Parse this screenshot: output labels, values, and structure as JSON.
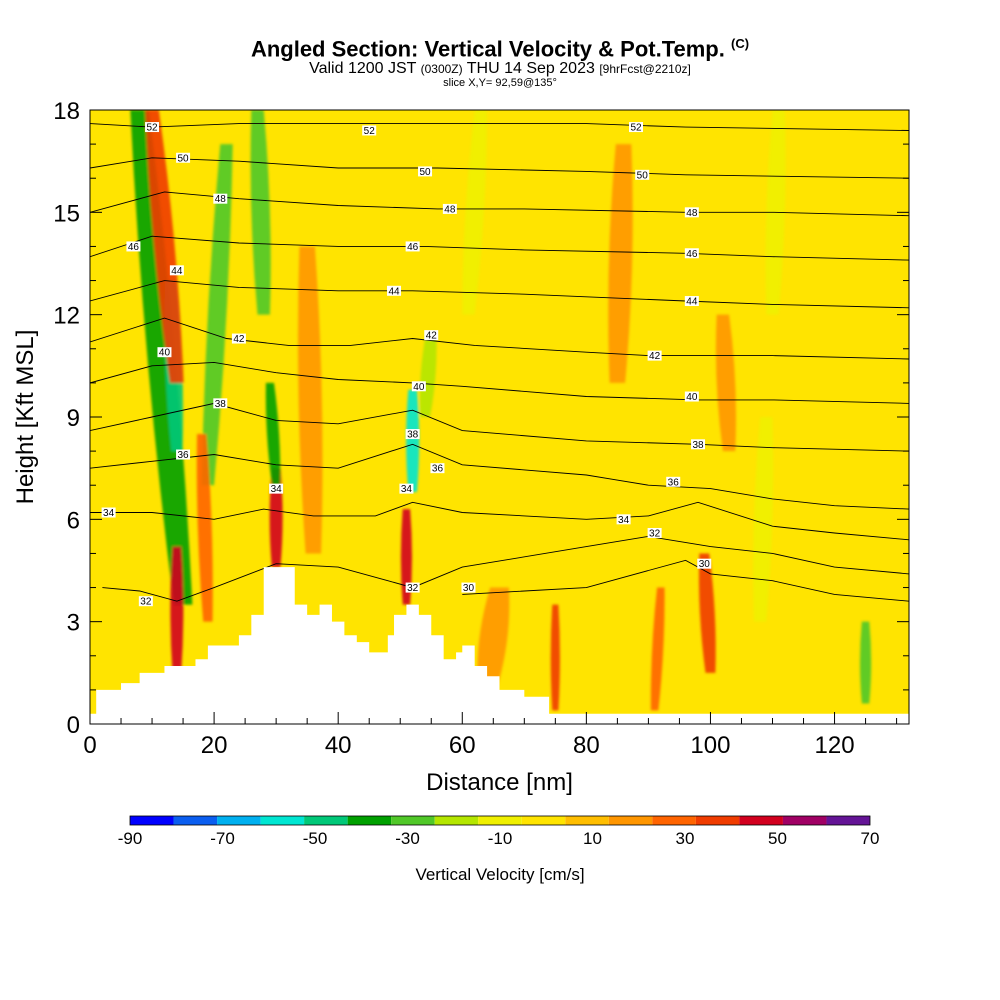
{
  "header": {
    "title": "Angled Section: Vertical Velocity & Pot.Temp.",
    "copyright": "(C)",
    "valid_prefix": "Valid 1200 JST",
    "valid_z": "(0300Z)",
    "valid_date": "THU 14 Sep 2023",
    "forecast": "[9hrFcst@2210z]",
    "slice": "slice X,Y= 92,59@135°"
  },
  "chart_data": {
    "type": "heatmap",
    "xlabel": "Distance [nm]",
    "ylabel": "Height [Kft MSL]",
    "xlim": [
      0,
      132
    ],
    "ylim": [
      0,
      18
    ],
    "x_ticks": [
      "0",
      "20",
      "40",
      "60",
      "80",
      "100",
      "120"
    ],
    "y_ticks": [
      "0",
      "3",
      "6",
      "9",
      "12",
      "15",
      "18"
    ],
    "colorbar": {
      "label": "Vertical Velocity [cm/s]",
      "tick_labels": [
        "-90",
        "-70",
        "-50",
        "-30",
        "-10",
        "10",
        "30",
        "50",
        "70"
      ],
      "boundaries": [
        -90,
        -80,
        -70,
        -60,
        -50,
        -40,
        -30,
        -20,
        -10,
        0,
        10,
        20,
        30,
        40,
        50,
        60,
        70
      ],
      "colors": [
        "#0000ff",
        "#0a5ef0",
        "#00b0f0",
        "#00e6d2",
        "#00c878",
        "#00a000",
        "#50c828",
        "#b4e600",
        "#f0f000",
        "#ffe400",
        "#ffbe00",
        "#ff9600",
        "#ff6400",
        "#f03c00",
        "#d2001e",
        "#a00064",
        "#641496"
      ]
    },
    "terrain_profile": [
      [
        0,
        0.3
      ],
      [
        1,
        1.0
      ],
      [
        5,
        1.2
      ],
      [
        8,
        1.5
      ],
      [
        12,
        1.7
      ],
      [
        15,
        1.7
      ],
      [
        17,
        1.9
      ],
      [
        19,
        2.3
      ],
      [
        22,
        2.3
      ],
      [
        24,
        2.6
      ],
      [
        26,
        3.2
      ],
      [
        28,
        4.6
      ],
      [
        31,
        4.6
      ],
      [
        33,
        3.5
      ],
      [
        35,
        3.2
      ],
      [
        37,
        3.5
      ],
      [
        39,
        3.0
      ],
      [
        41,
        2.6
      ],
      [
        43,
        2.4
      ],
      [
        45,
        2.1
      ],
      [
        47,
        2.1
      ],
      [
        48,
        2.6
      ],
      [
        49,
        3.2
      ],
      [
        51,
        3.5
      ],
      [
        53,
        3.2
      ],
      [
        55,
        2.6
      ],
      [
        57,
        1.9
      ],
      [
        59,
        2.1
      ],
      [
        60,
        2.3
      ],
      [
        62,
        1.7
      ],
      [
        64,
        1.4
      ],
      [
        66,
        1.0
      ],
      [
        70,
        0.8
      ],
      [
        74,
        0.3
      ],
      [
        132,
        0.3
      ]
    ],
    "theta_contours": [
      {
        "value": 30,
        "label": "30",
        "points": [
          [
            60,
            3.8
          ],
          [
            80,
            4.0
          ],
          [
            90,
            4.5
          ],
          [
            96,
            4.8
          ],
          [
            100,
            4.4
          ],
          [
            110,
            4.2
          ],
          [
            120,
            3.8
          ],
          [
            132,
            3.6
          ]
        ]
      },
      {
        "value": 32,
        "label": "32",
        "points": [
          [
            2,
            4.0
          ],
          [
            8,
            3.9
          ],
          [
            14,
            3.6
          ],
          [
            20,
            4.0
          ],
          [
            30,
            4.7
          ],
          [
            40,
            4.6
          ],
          [
            48,
            4.2
          ],
          [
            52,
            4.0
          ],
          [
            60,
            4.6
          ],
          [
            80,
            5.2
          ],
          [
            90,
            5.5
          ],
          [
            100,
            5.2
          ],
          [
            110,
            5.0
          ],
          [
            120,
            4.6
          ],
          [
            132,
            4.4
          ]
        ]
      },
      {
        "value": 34,
        "label": "34",
        "points": [
          [
            0,
            6.2
          ],
          [
            10,
            6.2
          ],
          [
            20,
            6.0
          ],
          [
            28,
            6.3
          ],
          [
            36,
            6.1
          ],
          [
            46,
            6.1
          ],
          [
            52,
            6.5
          ],
          [
            60,
            6.2
          ],
          [
            80,
            6.0
          ],
          [
            90,
            6.1
          ],
          [
            98,
            6.5
          ],
          [
            110,
            5.8
          ],
          [
            120,
            5.6
          ],
          [
            132,
            5.4
          ]
        ]
      },
      {
        "value": 36,
        "label": "36",
        "points": [
          [
            0,
            7.5
          ],
          [
            10,
            7.7
          ],
          [
            20,
            7.9
          ],
          [
            30,
            7.6
          ],
          [
            40,
            7.5
          ],
          [
            52,
            8.2
          ],
          [
            60,
            7.6
          ],
          [
            80,
            7.3
          ],
          [
            90,
            7.0
          ],
          [
            100,
            6.9
          ],
          [
            110,
            6.6
          ],
          [
            120,
            6.4
          ],
          [
            132,
            6.3
          ]
        ]
      },
      {
        "value": 38,
        "label": "38",
        "points": [
          [
            0,
            8.6
          ],
          [
            10,
            9.0
          ],
          [
            20,
            9.4
          ],
          [
            30,
            8.9
          ],
          [
            40,
            8.8
          ],
          [
            52,
            9.2
          ],
          [
            60,
            8.6
          ],
          [
            80,
            8.3
          ],
          [
            98,
            8.2
          ],
          [
            110,
            8.1
          ],
          [
            132,
            8.0
          ]
        ]
      },
      {
        "value": 40,
        "label": "40",
        "points": [
          [
            0,
            10.0
          ],
          [
            10,
            10.5
          ],
          [
            20,
            10.6
          ],
          [
            30,
            10.3
          ],
          [
            40,
            10.1
          ],
          [
            52,
            10.0
          ],
          [
            60,
            9.9
          ],
          [
            80,
            9.6
          ],
          [
            98,
            9.5
          ],
          [
            110,
            9.5
          ],
          [
            132,
            9.4
          ]
        ]
      },
      {
        "value": 42,
        "label": "42",
        "points": [
          [
            0,
            11.2
          ],
          [
            12,
            11.9
          ],
          [
            22,
            11.3
          ],
          [
            32,
            11.1
          ],
          [
            42,
            11.1
          ],
          [
            52,
            11.3
          ],
          [
            62,
            11.1
          ],
          [
            80,
            10.9
          ],
          [
            90,
            10.8
          ],
          [
            110,
            10.8
          ],
          [
            132,
            10.7
          ]
        ]
      },
      {
        "value": 44,
        "label": "44",
        "points": [
          [
            0,
            12.4
          ],
          [
            12,
            13.0
          ],
          [
            24,
            12.8
          ],
          [
            40,
            12.7
          ],
          [
            52,
            12.7
          ],
          [
            70,
            12.6
          ],
          [
            96,
            12.4
          ],
          [
            110,
            12.3
          ],
          [
            132,
            12.2
          ]
        ]
      },
      {
        "value": 46,
        "label": "46",
        "points": [
          [
            0,
            13.7
          ],
          [
            10,
            14.3
          ],
          [
            24,
            14.1
          ],
          [
            40,
            14.0
          ],
          [
            54,
            14.0
          ],
          [
            70,
            13.9
          ],
          [
            96,
            13.8
          ],
          [
            110,
            13.7
          ],
          [
            132,
            13.6
          ]
        ]
      },
      {
        "value": 48,
        "label": "48",
        "points": [
          [
            0,
            15.0
          ],
          [
            12,
            15.6
          ],
          [
            24,
            15.4
          ],
          [
            40,
            15.2
          ],
          [
            56,
            15.1
          ],
          [
            70,
            15.1
          ],
          [
            96,
            15.0
          ],
          [
            110,
            15.0
          ],
          [
            132,
            14.9
          ]
        ]
      },
      {
        "value": 50,
        "label": "50",
        "points": [
          [
            0,
            16.3
          ],
          [
            10,
            16.6
          ],
          [
            24,
            16.5
          ],
          [
            40,
            16.3
          ],
          [
            56,
            16.3
          ],
          [
            80,
            16.2
          ],
          [
            96,
            16.1
          ],
          [
            132,
            16.0
          ]
        ]
      },
      {
        "value": 52,
        "label": "52",
        "points": [
          [
            0,
            17.6
          ],
          [
            10,
            17.5
          ],
          [
            24,
            17.6
          ],
          [
            40,
            17.6
          ],
          [
            56,
            17.6
          ],
          [
            80,
            17.6
          ],
          [
            96,
            17.5
          ],
          [
            132,
            17.4
          ]
        ]
      }
    ],
    "contour_labels": [
      {
        "text": "52",
        "x": 10,
        "y": 17.5
      },
      {
        "text": "52",
        "x": 45,
        "y": 17.4
      },
      {
        "text": "52",
        "x": 88,
        "y": 17.5
      },
      {
        "text": "50",
        "x": 15,
        "y": 16.6
      },
      {
        "text": "50",
        "x": 54,
        "y": 16.2
      },
      {
        "text": "50",
        "x": 89,
        "y": 16.1
      },
      {
        "text": "48",
        "x": 21,
        "y": 15.4
      },
      {
        "text": "48",
        "x": 58,
        "y": 15.1
      },
      {
        "text": "48",
        "x": 97,
        "y": 15.0
      },
      {
        "text": "46",
        "x": 7,
        "y": 14.0
      },
      {
        "text": "46",
        "x": 52,
        "y": 14.0
      },
      {
        "text": "46",
        "x": 97,
        "y": 13.8
      },
      {
        "text": "44",
        "x": 14,
        "y": 13.3
      },
      {
        "text": "44",
        "x": 49,
        "y": 12.7
      },
      {
        "text": "44",
        "x": 97,
        "y": 12.4
      },
      {
        "text": "42",
        "x": 24,
        "y": 11.3
      },
      {
        "text": "42",
        "x": 55,
        "y": 11.4
      },
      {
        "text": "42",
        "x": 91,
        "y": 10.8
      },
      {
        "text": "40",
        "x": 12,
        "y": 10.9
      },
      {
        "text": "40",
        "x": 53,
        "y": 9.9
      },
      {
        "text": "40",
        "x": 97,
        "y": 9.6
      },
      {
        "text": "38",
        "x": 21,
        "y": 9.4
      },
      {
        "text": "38",
        "x": 52,
        "y": 8.5
      },
      {
        "text": "38",
        "x": 98,
        "y": 8.2
      },
      {
        "text": "36",
        "x": 15,
        "y": 7.9
      },
      {
        "text": "36",
        "x": 56,
        "y": 7.5
      },
      {
        "text": "36",
        "x": 94,
        "y": 7.1
      },
      {
        "text": "34",
        "x": 3,
        "y": 6.2
      },
      {
        "text": "34",
        "x": 30,
        "y": 6.9
      },
      {
        "text": "34",
        "x": 51,
        "y": 6.9
      },
      {
        "text": "34",
        "x": 86,
        "y": 6.0
      },
      {
        "text": "32",
        "x": 9,
        "y": 3.6
      },
      {
        "text": "32",
        "x": 52,
        "y": 4.0
      },
      {
        "text": "32",
        "x": 91,
        "y": 5.6
      },
      {
        "text": "30",
        "x": 61,
        "y": 4.0
      },
      {
        "text": "30",
        "x": 99,
        "y": 4.7
      }
    ],
    "velocity_features": [
      {
        "kind": "band",
        "value": -35,
        "base": [
          15,
          3.5
        ],
        "top": [
          8,
          18
        ],
        "width": 3.0
      },
      {
        "kind": "band",
        "value": -25,
        "base": [
          19,
          7.0
        ],
        "top": [
          22,
          17.0
        ],
        "width": 2.0
      },
      {
        "kind": "band",
        "value": -45,
        "base": [
          14,
          8.0
        ],
        "top": [
          13,
          13.0
        ],
        "width": 1.8
      },
      {
        "kind": "band",
        "value": 40,
        "base": [
          14,
          10.0
        ],
        "top": [
          10,
          18.0
        ],
        "width": 2.2
      },
      {
        "kind": "band",
        "value": 50,
        "base": [
          14,
          1.5
        ],
        "top": [
          14,
          5.2
        ],
        "width": 1.4
      },
      {
        "kind": "band",
        "value": 30,
        "base": [
          19,
          3.0
        ],
        "top": [
          18,
          8.5
        ],
        "width": 1.5
      },
      {
        "kind": "band",
        "value": 50,
        "base": [
          30,
          4.6
        ],
        "top": [
          30,
          7.5
        ],
        "width": 1.4
      },
      {
        "kind": "band",
        "value": -40,
        "base": [
          30,
          7.0
        ],
        "top": [
          29,
          10.0
        ],
        "width": 1.3
      },
      {
        "kind": "band",
        "value": -25,
        "base": [
          28,
          12.0
        ],
        "top": [
          27,
          18.0
        ],
        "width": 2.0
      },
      {
        "kind": "band",
        "value": 50,
        "base": [
          51,
          3.5
        ],
        "top": [
          51,
          6.3
        ],
        "width": 1.2
      },
      {
        "kind": "band",
        "value": -55,
        "base": [
          52,
          6.8
        ],
        "top": [
          52,
          9.8
        ],
        "width": 1.4
      },
      {
        "kind": "band",
        "value": -15,
        "base": [
          54,
          9.0
        ],
        "top": [
          55,
          11.5
        ],
        "width": 1.6
      },
      {
        "kind": "band",
        "value": 40,
        "base": [
          75,
          0.4
        ],
        "top": [
          75,
          3.5
        ],
        "width": 1.0
      },
      {
        "kind": "band",
        "value": 30,
        "base": [
          91,
          0.4
        ],
        "top": [
          92,
          4.0
        ],
        "width": 1.2
      },
      {
        "kind": "band",
        "value": 40,
        "base": [
          100,
          1.5
        ],
        "top": [
          99,
          5.0
        ],
        "width": 1.6
      },
      {
        "kind": "band",
        "value": 20,
        "base": [
          103,
          8.0
        ],
        "top": [
          102,
          12.0
        ],
        "width": 2.0
      },
      {
        "kind": "band",
        "value": -10,
        "base": [
          108,
          3.0
        ],
        "top": [
          109,
          9.0
        ],
        "width": 2.0
      },
      {
        "kind": "band",
        "value": -25,
        "base": [
          125,
          0.6
        ],
        "top": [
          125,
          3.0
        ],
        "width": 1.2
      },
      {
        "kind": "band",
        "value": 20,
        "base": [
          36,
          5.0
        ],
        "top": [
          35,
          14.0
        ],
        "width": 2.5
      },
      {
        "kind": "band",
        "value": 20,
        "base": [
          64,
          1.0
        ],
        "top": [
          66,
          4.0
        ],
        "width": 3.0
      },
      {
        "kind": "band",
        "value": 20,
        "base": [
          85,
          10.0
        ],
        "top": [
          86,
          17.0
        ],
        "width": 2.5
      },
      {
        "kind": "band",
        "value": -10,
        "base": [
          61,
          12.0
        ],
        "top": [
          63,
          18.0
        ],
        "width": 2.0
      },
      {
        "kind": "band",
        "value": -10,
        "base": [
          110,
          12.0
        ],
        "top": [
          111,
          18.0
        ],
        "width": 2.0
      }
    ]
  }
}
